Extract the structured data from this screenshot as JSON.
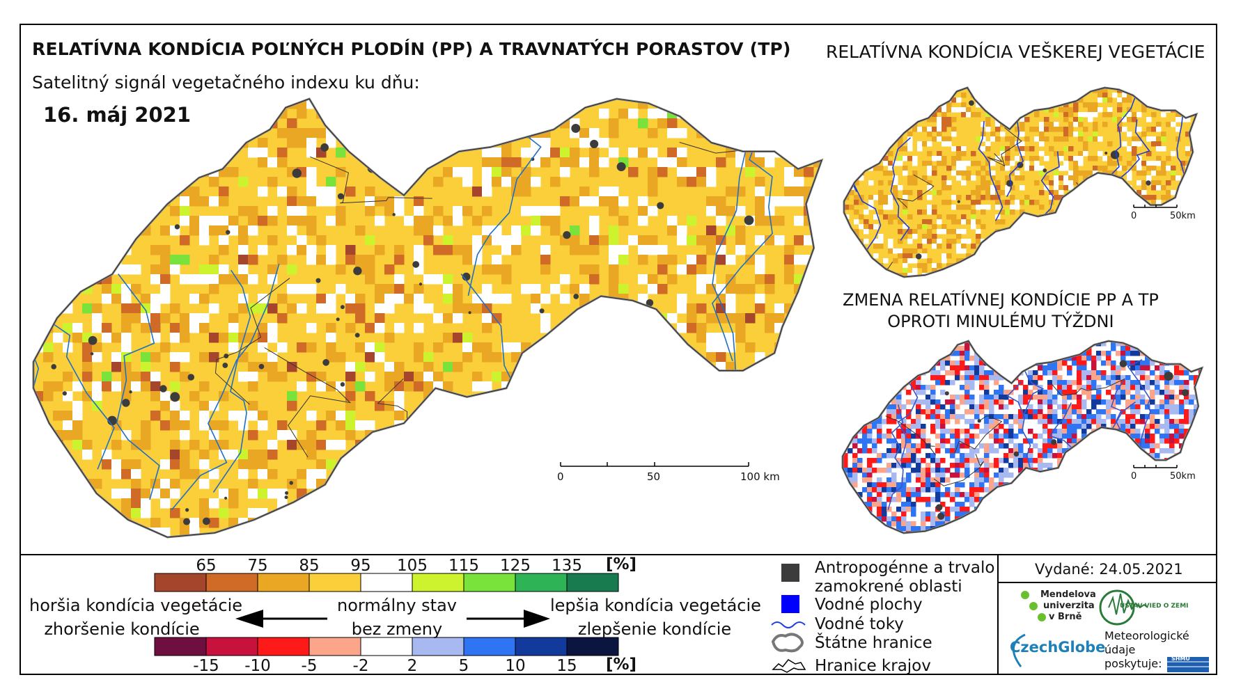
{
  "titles": {
    "main": "RELATÍVNA KONDÍCIA POĽNÝCH PLODÍN (PP) A TRAVNATÝCH PORASTOV (TP)",
    "subtitle": "Satelitný signál vegetačného indexu ku dňu:",
    "date": "16. máj 2021",
    "right_top": "RELATÍVNA KONDÍCIA VEŠKEREJ VEGETÁCIE",
    "right_bottom_1": "ZMENA RELATÍVNEJ KONDÍCIE PP A TP",
    "right_bottom_2": "OPROTI MINULÉMU TÝŽDNI"
  },
  "scalebars": {
    "main": [
      "0",
      "50",
      "100 km"
    ],
    "small_1": [
      "0",
      "50km"
    ],
    "small_2": [
      "0",
      "50km"
    ]
  },
  "legend_condition": {
    "ticks": [
      "65",
      "75",
      "85",
      "95",
      "105",
      "115",
      "125",
      "135"
    ],
    "unit": "[%]",
    "colors": [
      "#a5452c",
      "#d06b27",
      "#e9a724",
      "#fbcf3a",
      "#ffffff",
      "#cdf22e",
      "#79e23b",
      "#2fb357",
      "#187b4f"
    ]
  },
  "legend_change": {
    "ticks": [
      "-15",
      "-10",
      "-5",
      "-2",
      "2",
      "5",
      "10",
      "15"
    ],
    "unit": "[%]",
    "colors": [
      "#6e0f3f",
      "#c8113c",
      "#ff1a1a",
      "#fca58a",
      "#ffffff",
      "#a8b8f0",
      "#2f74f2",
      "#113a9c",
      "#0c1440"
    ]
  },
  "descriptions": {
    "worse_1": "horšia kondícia vegetácie",
    "worse_2": "zhoršenie kondície",
    "normal_1": "normálny stav",
    "normal_2": "bez zmeny",
    "better_1": "lepšia kondícia vegetácie",
    "better_2": "zlepšenie kondície"
  },
  "map_legend": {
    "anthropogenic_1": "Antropogénne a trvalo",
    "anthropogenic_2": "zamokrené oblasti",
    "water_bodies": "Vodné plochy",
    "rivers": "Vodné toky",
    "state_border": "Štátne hranice",
    "region_border": "Hranice krajov"
  },
  "issued": "Vydané: 24.05.2021",
  "logos": {
    "mendel_1": "Mendelova",
    "mendel_2": "univerzita",
    "mendel_3": "v Brně",
    "czechglobe": "CzechGlobe",
    "ustav": "ÚSTAV VIED O ZEMI",
    "meteo_1": "Meteorologické",
    "meteo_2": "údaje",
    "meteo_3": "poskytuje:",
    "shmu": "SHMÚ"
  }
}
